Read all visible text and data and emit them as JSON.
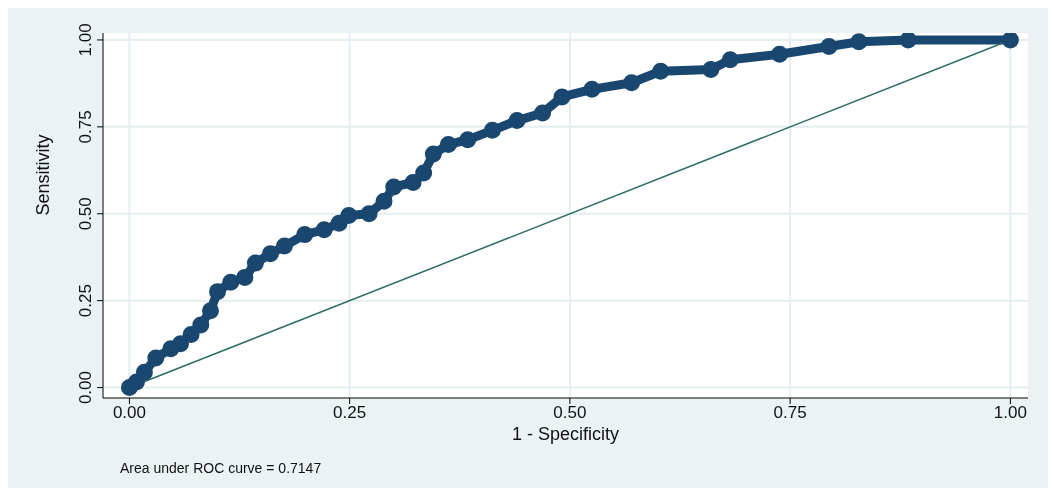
{
  "chart_data": {
    "type": "line",
    "xlabel": "1 - Specificity",
    "ylabel": "Sensitivity",
    "xlim": [
      -0.03,
      1.02
    ],
    "ylim": [
      -0.03,
      1.02
    ],
    "xticks": [
      {
        "value": 0,
        "label": "0.00"
      },
      {
        "value": 0.25,
        "label": "0.25"
      },
      {
        "value": 0.5,
        "label": "0.50"
      },
      {
        "value": 0.75,
        "label": "0.75"
      },
      {
        "value": 1,
        "label": "1.00"
      }
    ],
    "yticks": [
      {
        "value": 0,
        "label": "0.00"
      },
      {
        "value": 0.25,
        "label": "0.25"
      },
      {
        "value": 0.5,
        "label": "0.50"
      },
      {
        "value": 0.75,
        "label": "0.75"
      },
      {
        "value": 1,
        "label": "1.00"
      }
    ],
    "grid": true,
    "annotations": [
      "Area under ROC curve = 0.7147"
    ],
    "series": [
      {
        "marker": "circle",
        "color": "#1a476f",
        "x": [
          0,
          0.008,
          0.017,
          0.03,
          0.047,
          0.058,
          0.07,
          0.081,
          0.092,
          0.1,
          0.115,
          0.131,
          0.143,
          0.16,
          0.176,
          0.199,
          0.221,
          0.238,
          0.249,
          0.272,
          0.289,
          0.3,
          0.322,
          0.334,
          0.345,
          0.362,
          0.384,
          0.412,
          0.44,
          0.469,
          0.491,
          0.525,
          0.57,
          0.603,
          0.66,
          0.682,
          0.738,
          0.794,
          0.828,
          0.884,
          1
        ],
        "values": [
          0,
          0.016,
          0.044,
          0.085,
          0.112,
          0.126,
          0.153,
          0.18,
          0.221,
          0.276,
          0.303,
          0.317,
          0.358,
          0.385,
          0.407,
          0.44,
          0.454,
          0.473,
          0.495,
          0.5,
          0.536,
          0.577,
          0.59,
          0.617,
          0.672,
          0.699,
          0.713,
          0.74,
          0.768,
          0.79,
          0.836,
          0.858,
          0.877,
          0.91,
          0.915,
          0.943,
          0.959,
          0.981,
          0.995,
          1,
          1
        ]
      },
      {
        "marker": "none",
        "color": "#2d6d66",
        "x": [
          0,
          1
        ],
        "values": [
          0,
          1
        ]
      }
    ]
  }
}
